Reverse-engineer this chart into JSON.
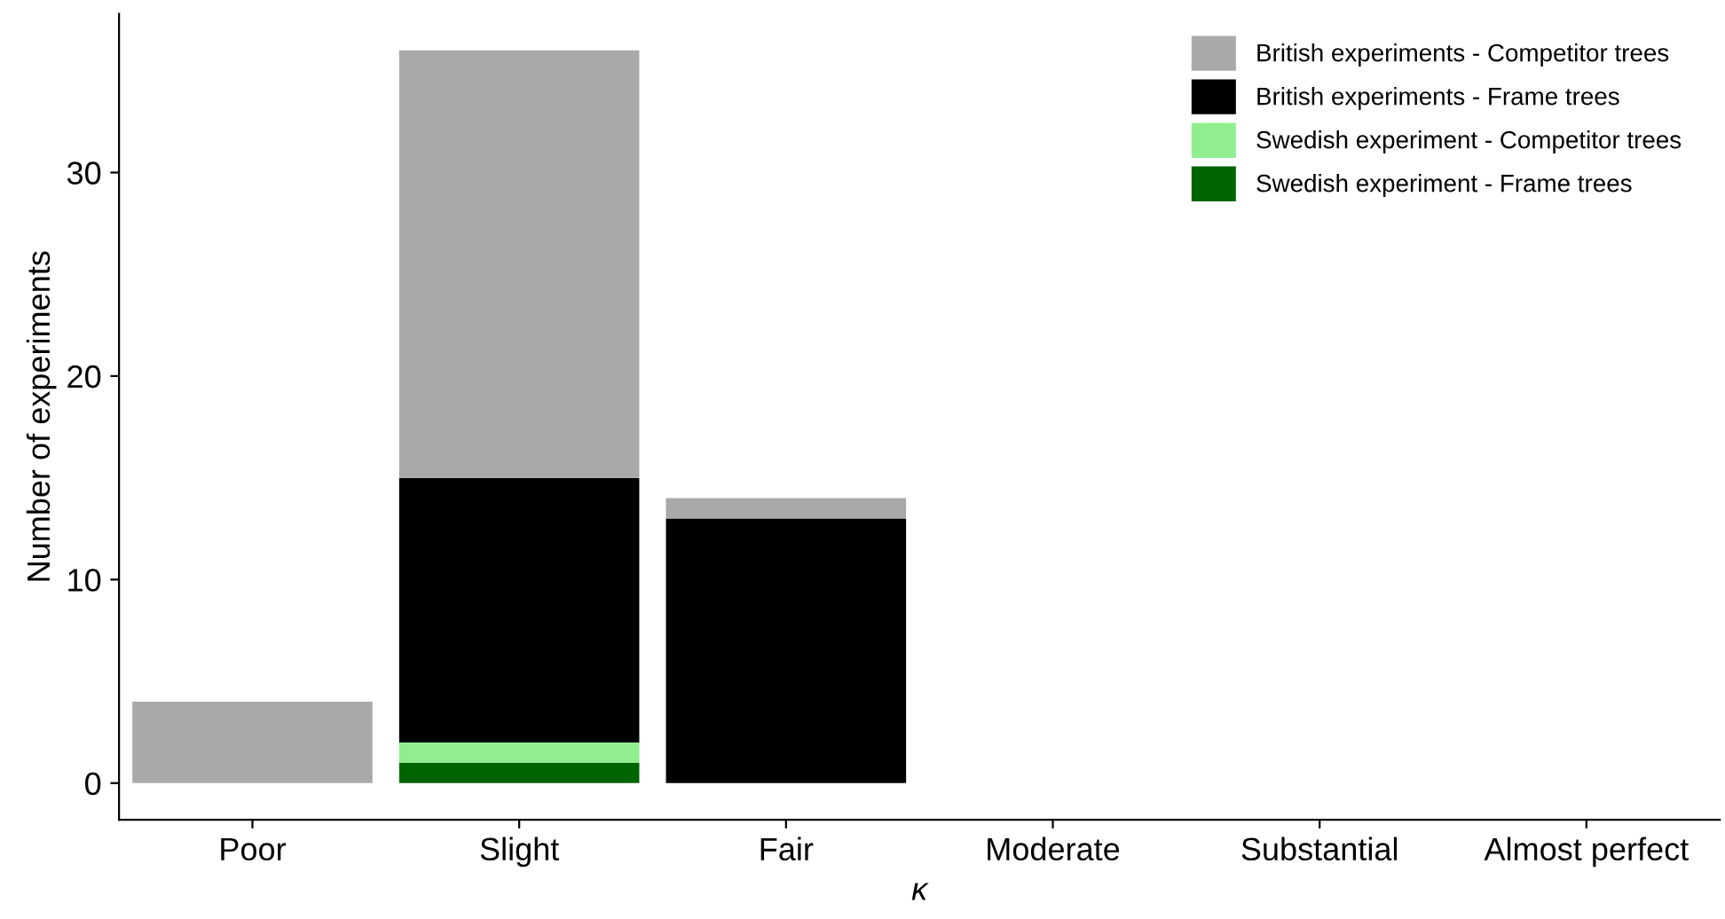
{
  "chart_data": {
    "type": "bar",
    "stacked": true,
    "xlabel": "κ",
    "ylabel": "Number of experiments",
    "categories": [
      "Poor",
      "Slight",
      "Fair",
      "Moderate",
      "Substantial",
      "Almost perfect"
    ],
    "series": [
      {
        "name": "Swedish experiment - Frame trees",
        "color": "#006400",
        "values": [
          0,
          1,
          0,
          0,
          0,
          0
        ]
      },
      {
        "name": "Swedish experiment - Competitor trees",
        "color": "#90ee90",
        "values": [
          0,
          1,
          0,
          0,
          0,
          0
        ]
      },
      {
        "name": "British experiments - Frame trees",
        "color": "#000000",
        "values": [
          0,
          13,
          13,
          0,
          0,
          0
        ]
      },
      {
        "name": "British experiments - Competitor trees",
        "color": "#a9a9a9",
        "values": [
          4,
          21,
          1,
          0,
          0,
          0
        ]
      }
    ],
    "ylim": [
      -1.8,
      37.8
    ],
    "yticks": [
      0,
      10,
      20,
      30
    ],
    "grid": false,
    "legend": "top right"
  }
}
